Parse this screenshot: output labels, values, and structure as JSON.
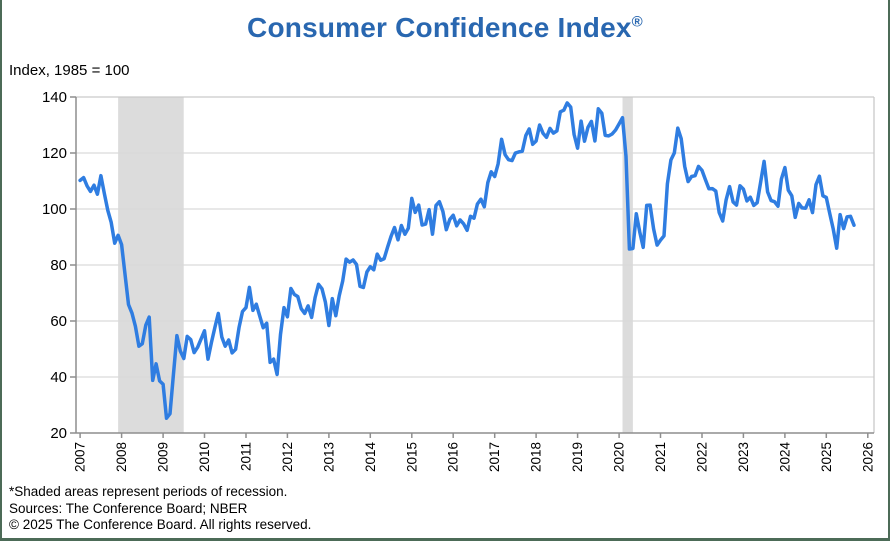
{
  "title": {
    "text": "Consumer Confidence Index",
    "mark": "®"
  },
  "axis_units_label": "Index, 1985 = 100",
  "footnotes": [
    "*Shaded areas represent periods of recession.",
    "Sources:  The Conference Board;  NBER",
    "© 2025 The Conference Board. All rights reserved."
  ],
  "colors": {
    "title_blue": "#2967B0",
    "line_blue": "#2F7DE1",
    "recession_gray": "#DCDCDC",
    "grid_gray": "#D9D9D9",
    "axis_gray": "#8E8E8E",
    "frame_light": "#C9C9C9",
    "border_green": "#4C6B57",
    "text_black": "#000000"
  },
  "chart_data": {
    "type": "line",
    "title": "Consumer Confidence Index®",
    "xlabel": "",
    "ylabel": "Index, 1985 = 100",
    "ylim": [
      20,
      140
    ],
    "y_ticks": [
      20,
      40,
      60,
      80,
      100,
      120,
      140
    ],
    "x_ticks": [
      2007,
      2008,
      2009,
      2010,
      2011,
      2012,
      2013,
      2014,
      2015,
      2016,
      2017,
      2018,
      2019,
      2020,
      2021,
      2022,
      2023,
      2024,
      2025,
      2026
    ],
    "grid": "horizontal",
    "legend": "none",
    "recession_bands": [
      {
        "start": "2007-12",
        "end": "2009-06"
      },
      {
        "start": "2020-02",
        "end": "2020-04"
      }
    ],
    "series": [
      {
        "name": "Consumer Confidence Index (monthly)",
        "start": "2007-01",
        "frequency": "monthly",
        "values_by_year": {
          "2007": [
            110.2,
            111.2,
            108.2,
            106.3,
            108.5,
            105.3,
            111.9,
            105.6,
            99.5,
            95.2,
            87.8,
            90.6
          ],
          "2008": [
            87.3,
            76.4,
            65.9,
            62.8,
            58.1,
            51.0,
            51.9,
            58.5,
            61.4,
            38.8,
            44.7,
            38.6
          ],
          "2009": [
            37.4,
            25.3,
            26.9,
            40.8,
            54.8,
            49.3,
            46.6,
            54.5,
            53.4,
            48.7,
            50.6,
            53.6
          ],
          "2010": [
            56.5,
            46.4,
            52.3,
            57.7,
            62.7,
            54.3,
            51.0,
            53.2,
            48.6,
            49.9,
            57.8,
            63.4
          ],
          "2011": [
            64.8,
            72.0,
            63.8,
            66.0,
            61.7,
            57.6,
            59.2,
            45.2,
            46.4,
            40.9,
            55.2,
            64.8
          ],
          "2012": [
            61.5,
            71.6,
            69.5,
            68.7,
            64.4,
            62.7,
            65.4,
            61.3,
            68.4,
            73.1,
            71.5,
            66.7
          ],
          "2013": [
            58.4,
            68.0,
            61.9,
            69.0,
            74.3,
            82.1,
            81.0,
            81.8,
            80.2,
            72.4,
            72.0,
            77.5
          ],
          "2014": [
            79.4,
            78.3,
            83.9,
            81.7,
            82.2,
            86.4,
            90.3,
            93.4,
            89.0,
            94.1,
            91.0,
            93.1
          ],
          "2015": [
            103.8,
            98.8,
            101.4,
            94.3,
            94.6,
            99.8,
            91.0,
            101.3,
            102.6,
            99.1,
            92.6,
            96.3
          ],
          "2016": [
            97.8,
            94.0,
            96.1,
            94.7,
            92.4,
            97.4,
            96.7,
            101.8,
            103.5,
            100.8,
            109.4,
            113.3
          ],
          "2017": [
            111.6,
            116.1,
            124.9,
            119.4,
            117.6,
            117.3,
            120.0,
            120.4,
            120.6,
            126.2,
            128.6,
            123.1
          ],
          "2018": [
            124.3,
            130.0,
            127.0,
            125.6,
            128.8,
            127.1,
            127.9,
            134.7,
            135.3,
            137.9,
            136.4,
            126.6
          ],
          "2019": [
            121.7,
            131.4,
            124.2,
            129.2,
            131.3,
            124.3,
            135.8,
            134.2,
            126.3,
            126.1,
            126.8,
            128.2
          ],
          "2020": [
            130.4,
            132.6,
            118.8,
            85.7,
            85.9,
            98.3,
            91.7,
            86.3,
            101.3,
            101.4,
            92.9,
            87.1
          ],
          "2021": [
            88.9,
            90.4,
            109.0,
            117.5,
            120.0,
            128.9,
            125.1,
            115.2,
            109.8,
            111.6,
            111.9,
            115.2
          ],
          "2022": [
            113.8,
            110.5,
            107.2,
            107.3,
            106.4,
            98.7,
            95.7,
            103.2,
            108.0,
            102.5,
            101.4,
            108.3
          ],
          "2023": [
            107.1,
            102.9,
            104.2,
            101.3,
            102.3,
            109.7,
            117.0,
            106.1,
            103.0,
            102.6,
            101.0,
            110.7
          ],
          "2024": [
            114.8,
            106.7,
            104.7,
            97.0,
            102.0,
            100.4,
            100.3,
            103.3,
            98.7,
            108.7,
            111.7,
            104.7
          ],
          "2025": [
            104.1,
            98.3,
            92.9,
            86.0,
            98.0,
            93.0,
            97.2,
            97.4,
            94.2
          ]
        }
      }
    ]
  }
}
